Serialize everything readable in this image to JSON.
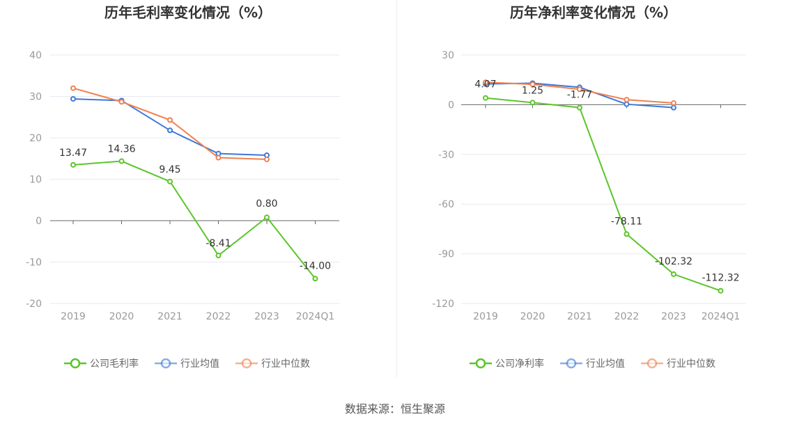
{
  "source": "数据来源：恒生聚源",
  "colors": {
    "company": "#5bc52a",
    "industry_avg": "#3c78d8",
    "industry_median": "#f08050",
    "grid": "#e6e9f0",
    "axis": "#666666"
  },
  "chart_data": [
    {
      "type": "line",
      "title": "历年毛利率变化情况（%）",
      "categories": [
        "2019",
        "2020",
        "2021",
        "2022",
        "2023",
        "2024Q1"
      ],
      "ylim": [
        -20,
        40
      ],
      "yticks": [
        -20,
        -10,
        0,
        10,
        20,
        30,
        40
      ],
      "grid": true,
      "legend_position": "bottom",
      "series": [
        {
          "name": "公司毛利率",
          "key": "company",
          "values": [
            13.47,
            14.36,
            9.45,
            -8.41,
            0.8,
            -14.0
          ],
          "labels": [
            "13.47",
            "14.36",
            "9.45",
            "-8.41",
            "0.80",
            "-14.00"
          ]
        },
        {
          "name": "行业均值",
          "key": "industry_avg",
          "values": [
            29.4,
            29.0,
            21.8,
            16.2,
            15.8,
            null
          ]
        },
        {
          "name": "行业中位数",
          "key": "industry_median",
          "values": [
            32.0,
            28.7,
            24.3,
            15.2,
            14.8,
            null
          ]
        }
      ]
    },
    {
      "type": "line",
      "title": "历年净利率变化情况（%）",
      "categories": [
        "2019",
        "2020",
        "2021",
        "2022",
        "2023",
        "2024Q1"
      ],
      "ylim": [
        -120,
        30
      ],
      "yticks": [
        -120,
        -90,
        -60,
        -30,
        0,
        30
      ],
      "grid": true,
      "legend_position": "bottom",
      "series": [
        {
          "name": "公司净利率",
          "key": "company",
          "values": [
            4.07,
            1.25,
            -1.77,
            -78.11,
            -102.32,
            -112.32
          ],
          "labels": [
            "4.07",
            "1.25",
            "-1.77",
            "-78.11",
            "-102.32",
            "-112.32"
          ]
        },
        {
          "name": "行业均值",
          "key": "industry_avg",
          "values": [
            12.5,
            13.0,
            10.5,
            0.3,
            -1.8,
            null
          ]
        },
        {
          "name": "行业中位数",
          "key": "industry_median",
          "values": [
            13.5,
            12.3,
            9.3,
            3.0,
            1.0,
            null
          ]
        }
      ]
    }
  ]
}
